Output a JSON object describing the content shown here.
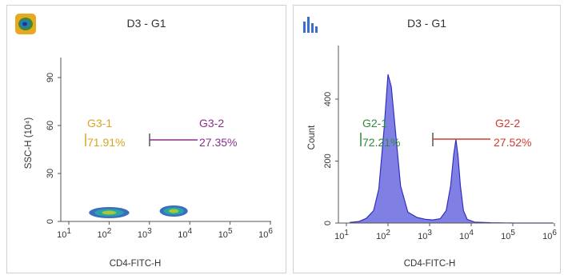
{
  "colors": {
    "gate_g3_1": "#d9a520",
    "gate_g3_2": "#8b2f8e",
    "gate_g2_1": "#2e8b3a",
    "gate_g2_2": "#d23a2e",
    "histogram_fill": "#6a6adf",
    "histogram_edge": "#3030c0",
    "dot_outer": "#3a6fbf",
    "dot_mid": "#2aa5a5",
    "dot_core": "#a6c83a"
  },
  "left_panel": {
    "icon": "density-plot-icon",
    "title": "D3 - G1",
    "x_axis_label": "CD4-FITC-H",
    "y_axis_label": "SSC-H (10⁴)",
    "x_ticks": [
      {
        "base": "10",
        "exp": "1"
      },
      {
        "base": "10",
        "exp": "2"
      },
      {
        "base": "10",
        "exp": "3"
      },
      {
        "base": "10",
        "exp": "4"
      },
      {
        "base": "10",
        "exp": "5"
      },
      {
        "base": "10",
        "exp": "6"
      }
    ],
    "y_ticks": [
      "0",
      "30",
      "60",
      "90"
    ],
    "gates": [
      {
        "name": "G3-1",
        "percent": "71.91%"
      },
      {
        "name": "G3-2",
        "percent": "27.35%"
      }
    ]
  },
  "right_panel": {
    "icon": "histogram-icon",
    "title": "D3 - G1",
    "x_axis_label": "CD4-FITC-H",
    "y_axis_label": "Count",
    "x_ticks": [
      {
        "base": "10",
        "exp": "1"
      },
      {
        "base": "10",
        "exp": "2"
      },
      {
        "base": "10",
        "exp": "3"
      },
      {
        "base": "10",
        "exp": "4"
      },
      {
        "base": "10",
        "exp": "5"
      },
      {
        "base": "10",
        "exp": "6"
      }
    ],
    "y_ticks": [
      "0",
      "200",
      "400"
    ],
    "gates": [
      {
        "name": "G2-1",
        "percent": "72.21%"
      },
      {
        "name": "G2-2",
        "percent": "27.52%"
      }
    ]
  },
  "chart_data": [
    {
      "type": "scatter",
      "title": "D3 - G1",
      "xlabel": "CD4-FITC-H",
      "ylabel": "SSC-H (10⁴)",
      "x_scale": "log",
      "xlim": [
        10,
        1000000
      ],
      "ylim": [
        0,
        100
      ],
      "clusters": [
        {
          "x_center": 100,
          "y_center": 4,
          "x_range": [
            30,
            300
          ],
          "y_range": [
            2,
            7
          ]
        },
        {
          "x_center": 4000,
          "y_center": 5,
          "x_range": [
            1600,
            8000
          ],
          "y_range": [
            2,
            8
          ]
        }
      ],
      "gates": [
        {
          "name": "G3-1",
          "percent": 71.91
        },
        {
          "name": "G3-2",
          "percent": 27.35
        }
      ]
    },
    {
      "type": "area",
      "title": "D3 - G1",
      "xlabel": "CD4-FITC-H",
      "ylabel": "Count",
      "x_scale": "log",
      "xlim": [
        10,
        1000000
      ],
      "ylim": [
        0,
        560
      ],
      "x": [
        12,
        20,
        30,
        45,
        60,
        80,
        100,
        120,
        150,
        200,
        300,
        500,
        800,
        1200,
        1800,
        2500,
        3200,
        3800,
        4300,
        4800,
        5500,
        6500,
        8000,
        12000,
        30000,
        100000,
        1000000
      ],
      "y": [
        2,
        5,
        15,
        40,
        110,
        300,
        480,
        440,
        300,
        120,
        35,
        18,
        12,
        10,
        14,
        40,
        120,
        220,
        270,
        220,
        120,
        40,
        12,
        3,
        1,
        0,
        0
      ],
      "gates": [
        {
          "name": "G2-1",
          "percent": 72.21
        },
        {
          "name": "G2-2",
          "percent": 27.52
        }
      ]
    }
  ]
}
